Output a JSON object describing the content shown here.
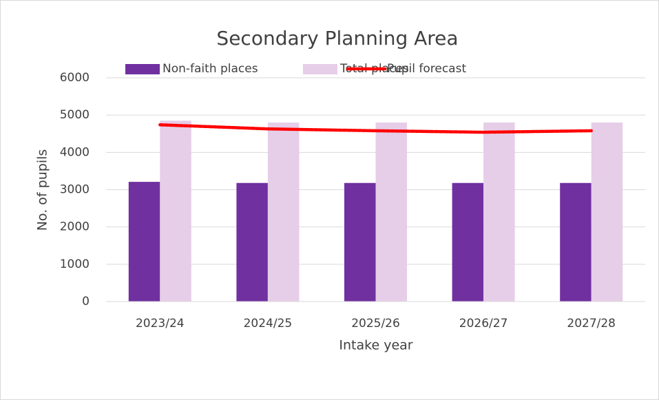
{
  "chart_data": {
    "type": "bar",
    "title": "Secondary Planning Area",
    "categories": [
      "2023/24",
      "2024/25",
      "2025/26",
      "2026/27",
      "2027/28"
    ],
    "series": [
      {
        "name": "Non-faith places",
        "color": "#7030a0",
        "type": "bar",
        "values": [
          3210,
          3180,
          3180,
          3180,
          3180
        ]
      },
      {
        "name": "Total places",
        "color": "#e6cde8",
        "type": "bar",
        "values": [
          4850,
          4800,
          4800,
          4800,
          4800
        ]
      },
      {
        "name": "Pupil forecast",
        "color": "#ff0000",
        "type": "line",
        "values": [
          4740,
          4630,
          4580,
          4540,
          4580
        ]
      }
    ],
    "xlabel": "Intake year",
    "ylabel": "No. of pupils",
    "ylim": [
      0,
      6000
    ],
    "yticks": [
      0,
      1000,
      2000,
      3000,
      4000,
      5000,
      6000
    ],
    "grid": true,
    "legend": "top"
  }
}
